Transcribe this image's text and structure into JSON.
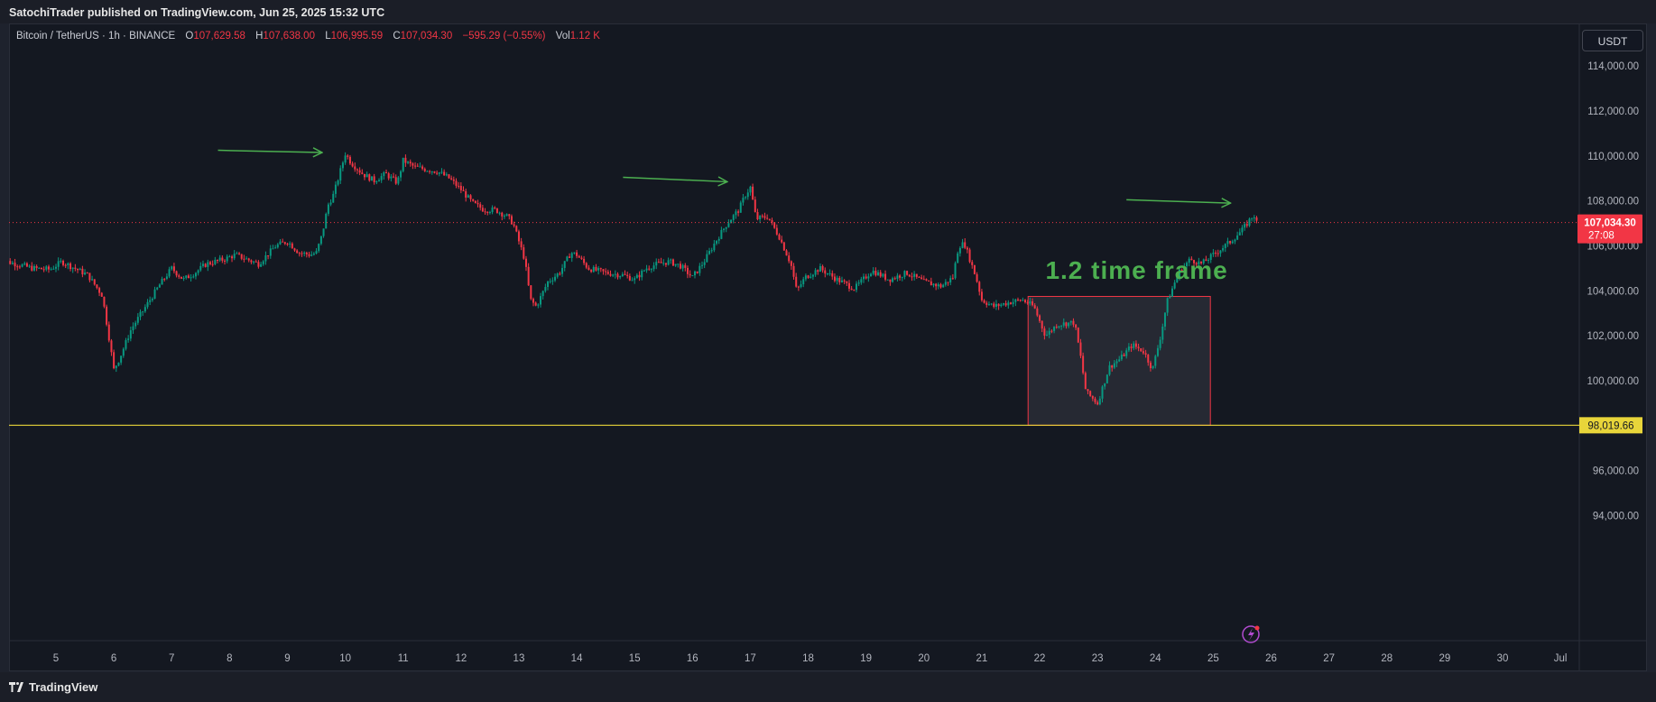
{
  "header": {
    "published_text": "SatochiTrader published on TradingView.com, Jun 25, 2025 15:32 UTC"
  },
  "legend": {
    "symbol": "Bitcoin / TetherUS · 1h · BINANCE",
    "open_label": "O",
    "open": "107,629.58",
    "high_label": "H",
    "high": "107,638.00",
    "low_label": "L",
    "low": "106,995.59",
    "close_label": "C",
    "close": "107,034.30",
    "change": "−595.29 (−0.55%)",
    "vol_label": "Vol",
    "vol": "1.12 K"
  },
  "currency_button": "USDT",
  "footer": {
    "brand": "TradingView"
  },
  "colors": {
    "up": "#089981",
    "down": "#f23645",
    "support": "#e8d53a",
    "arrow": "#4caf50",
    "annotation": "#4caf50",
    "box_border": "#f23645"
  },
  "chart_data": {
    "type": "candlestick",
    "symbol": "BTCUSDT",
    "timeframe": "1h",
    "x_ticks": [
      "5",
      "6",
      "7",
      "8",
      "9",
      "10",
      "11",
      "12",
      "13",
      "14",
      "15",
      "16",
      "17",
      "18",
      "19",
      "20",
      "21",
      "22",
      "23",
      "24",
      "25",
      "26",
      "27",
      "28",
      "29",
      "30",
      "Jul"
    ],
    "x_range": [
      4.0,
      31.2
    ],
    "y_ticks": [
      94000,
      96000,
      98000,
      100000,
      102000,
      104000,
      106000,
      108000,
      110000,
      112000,
      114000
    ],
    "y_tick_labels": [
      "94,000.00",
      "96,000.00",
      "98,000.00",
      "100,000.00",
      "102,000.00",
      "104,000.00",
      "106,000.00",
      "108,000.00",
      "110,000.00",
      "112,000.00",
      "114,000.00"
    ],
    "y_range": [
      92400,
      115200
    ],
    "price_path": [
      [
        4.0,
        105400
      ],
      [
        4.3,
        105200
      ],
      [
        4.6,
        105000
      ],
      [
        4.9,
        104950
      ],
      [
        5.1,
        105300
      ],
      [
        5.4,
        104900
      ],
      [
        5.55,
        104700
      ],
      [
        5.8,
        103800
      ],
      [
        5.9,
        102200
      ],
      [
        6.0,
        100500
      ],
      [
        6.1,
        101000
      ],
      [
        6.3,
        102300
      ],
      [
        6.6,
        103500
      ],
      [
        6.8,
        104300
      ],
      [
        7.0,
        105000
      ],
      [
        7.2,
        104500
      ],
      [
        7.4,
        104800
      ],
      [
        7.6,
        105200
      ],
      [
        7.9,
        105400
      ],
      [
        8.1,
        105600
      ],
      [
        8.3,
        105400
      ],
      [
        8.5,
        105200
      ],
      [
        8.8,
        106000
      ],
      [
        9.0,
        106200
      ],
      [
        9.2,
        105700
      ],
      [
        9.4,
        105600
      ],
      [
        9.5,
        105700
      ],
      [
        9.6,
        106500
      ],
      [
        9.7,
        107800
      ],
      [
        9.8,
        108300
      ],
      [
        9.9,
        109200
      ],
      [
        10.0,
        110100
      ],
      [
        10.1,
        109700
      ],
      [
        10.3,
        109200
      ],
      [
        10.5,
        108900
      ],
      [
        10.7,
        109200
      ],
      [
        10.9,
        108800
      ],
      [
        11.0,
        109800
      ],
      [
        11.2,
        109500
      ],
      [
        11.4,
        109400
      ],
      [
        11.6,
        109300
      ],
      [
        11.8,
        109000
      ],
      [
        12.0,
        108500
      ],
      [
        12.2,
        107900
      ],
      [
        12.4,
        107600
      ],
      [
        12.6,
        107600
      ],
      [
        12.8,
        107300
      ],
      [
        12.9,
        107000
      ],
      [
        13.0,
        106200
      ],
      [
        13.1,
        105400
      ],
      [
        13.2,
        103600
      ],
      [
        13.3,
        103300
      ],
      [
        13.5,
        104400
      ],
      [
        13.7,
        104800
      ],
      [
        13.9,
        105700
      ],
      [
        14.0,
        105600
      ],
      [
        14.2,
        105000
      ],
      [
        14.5,
        104800
      ],
      [
        14.8,
        104700
      ],
      [
        15.0,
        104500
      ],
      [
        15.2,
        105000
      ],
      [
        15.4,
        105200
      ],
      [
        15.6,
        105300
      ],
      [
        15.8,
        105100
      ],
      [
        16.0,
        104600
      ],
      [
        16.2,
        105300
      ],
      [
        16.4,
        106200
      ],
      [
        16.6,
        107000
      ],
      [
        16.8,
        107600
      ],
      [
        16.9,
        108200
      ],
      [
        17.0,
        108600
      ],
      [
        17.1,
        107200
      ],
      [
        17.3,
        107300
      ],
      [
        17.5,
        106400
      ],
      [
        17.7,
        105200
      ],
      [
        17.8,
        104000
      ],
      [
        17.95,
        104600
      ],
      [
        18.2,
        105000
      ],
      [
        18.5,
        104500
      ],
      [
        18.8,
        104100
      ],
      [
        19.1,
        104900
      ],
      [
        19.4,
        104500
      ],
      [
        19.7,
        104800
      ],
      [
        20.0,
        104400
      ],
      [
        20.3,
        104200
      ],
      [
        20.5,
        104600
      ],
      [
        20.6,
        106000
      ],
      [
        20.7,
        106100
      ],
      [
        20.9,
        104600
      ],
      [
        21.0,
        103600
      ],
      [
        21.2,
        103300
      ],
      [
        21.5,
        103500
      ],
      [
        21.7,
        103600
      ],
      [
        21.9,
        103300
      ],
      [
        22.1,
        102000
      ],
      [
        22.3,
        102500
      ],
      [
        22.6,
        102600
      ],
      [
        22.7,
        101200
      ],
      [
        22.8,
        99500
      ],
      [
        23.0,
        99000
      ],
      [
        23.2,
        100600
      ],
      [
        23.4,
        101000
      ],
      [
        23.6,
        101600
      ],
      [
        23.8,
        101300
      ],
      [
        23.95,
        100500
      ],
      [
        24.1,
        102100
      ],
      [
        24.2,
        103500
      ],
      [
        24.4,
        104800
      ],
      [
        24.6,
        105400
      ],
      [
        24.8,
        105200
      ],
      [
        25.0,
        105600
      ],
      [
        25.3,
        106200
      ],
      [
        25.5,
        106700
      ],
      [
        25.7,
        107400
      ],
      [
        25.75,
        107034
      ]
    ],
    "last_price": 107034.3,
    "last_price_label": "107,034.30",
    "countdown": "27:08",
    "support_level": 98019.66,
    "support_label": "98,019.66",
    "annotation_text": "1.2 time frame",
    "arrows": [
      {
        "x1": 7.8,
        "y1": 110250,
        "x2": 9.6,
        "y2": 110150
      },
      {
        "x1": 14.8,
        "y1": 109050,
        "x2": 16.6,
        "y2": 108850
      },
      {
        "x1": 23.5,
        "y1": 108050,
        "x2": 25.3,
        "y2": 107900
      }
    ],
    "highlight_box": {
      "x0": 21.8,
      "x1": 24.95,
      "y0": 98020,
      "y1": 103750
    }
  }
}
